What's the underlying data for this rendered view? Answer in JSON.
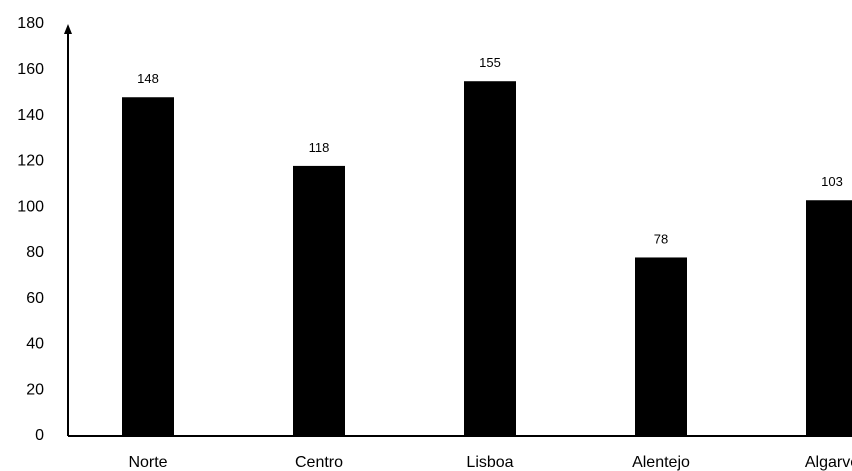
{
  "chart_data": {
    "type": "bar",
    "categories": [
      "Norte",
      "Centro",
      "Lisboa",
      "Alentejo",
      "Algarve"
    ],
    "values": [
      148,
      118,
      155,
      78,
      103
    ],
    "data_labels": [
      "148",
      "118",
      "155",
      "78",
      "103"
    ],
    "title": "",
    "xlabel": "",
    "ylabel": "",
    "ylim": [
      0,
      180
    ],
    "yticks": [
      0,
      20,
      40,
      60,
      80,
      100,
      120,
      140,
      160,
      180
    ],
    "grid": false,
    "legend": "none",
    "bar_color": "#000000",
    "axis_color": "#000000"
  }
}
